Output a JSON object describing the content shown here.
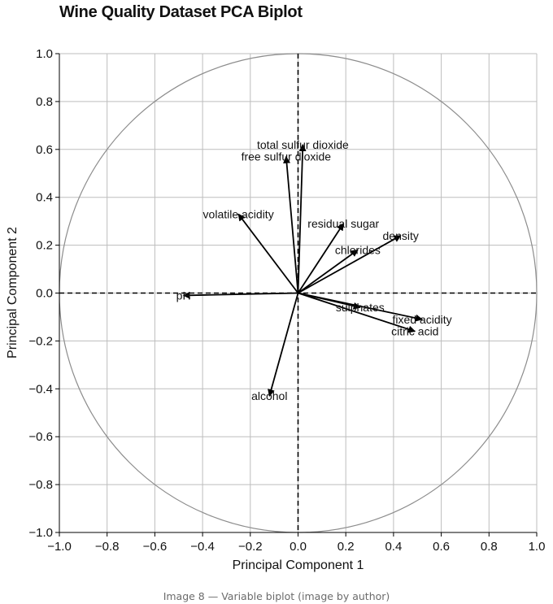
{
  "chart_data": {
    "type": "scatter",
    "subtype": "pca-biplot",
    "title": "Wine Quality Dataset PCA Biplot",
    "xlabel": "Principal Component 1",
    "ylabel": "Principal Component 2",
    "xlim": [
      -1.0,
      1.0
    ],
    "ylim": [
      -1.0,
      1.0
    ],
    "xticks": [
      -1.0,
      -0.8,
      -0.6,
      -0.4,
      -0.2,
      0.0,
      0.2,
      0.4,
      0.6,
      0.8,
      1.0
    ],
    "yticks": [
      -1.0,
      -0.8,
      -0.6,
      -0.4,
      -0.2,
      0.0,
      0.2,
      0.4,
      0.6,
      0.8,
      1.0
    ],
    "xtick_labels": [
      "−1.0",
      "−0.8",
      "−0.6",
      "−0.4",
      "−0.2",
      "0.0",
      "0.2",
      "0.4",
      "0.6",
      "0.8",
      "1.0"
    ],
    "ytick_labels": [
      "−1.0",
      "−0.8",
      "−0.6",
      "−0.4",
      "−0.2",
      "0.0",
      "0.2",
      "0.4",
      "0.6",
      "0.8",
      "1.0"
    ],
    "grid": true,
    "unit_circle": true,
    "zero_lines": "dashed",
    "colors": {
      "arrow": "#000000",
      "grid": "#bdbdbd",
      "circle": "#8c8c8c"
    },
    "vectors": [
      {
        "name": "total sulfur dioxide",
        "x": 0.02,
        "y": 0.62
      },
      {
        "name": "free sulfur dioxide",
        "x": -0.05,
        "y": 0.57
      },
      {
        "name": "volatile acidity",
        "x": -0.25,
        "y": 0.33
      },
      {
        "name": "residual sugar",
        "x": 0.19,
        "y": 0.29
      },
      {
        "name": "density",
        "x": 0.43,
        "y": 0.24
      },
      {
        "name": "chlorides",
        "x": 0.25,
        "y": 0.18
      },
      {
        "name": "pH",
        "x": -0.48,
        "y": -0.01
      },
      {
        "name": "sulphates",
        "x": 0.26,
        "y": -0.06
      },
      {
        "name": "fixed acidity",
        "x": 0.52,
        "y": -0.11
      },
      {
        "name": "citric acid",
        "x": 0.49,
        "y": -0.16
      },
      {
        "name": "alcohol",
        "x": -0.12,
        "y": -0.43
      }
    ]
  },
  "caption": "Image 8 — Variable biplot (image by author)"
}
